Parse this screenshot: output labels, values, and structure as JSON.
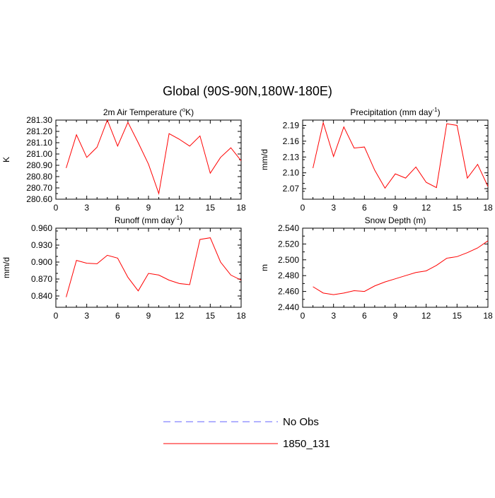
{
  "figure": {
    "title": "Global (90S-90N,180W-180E)",
    "line_color": "#ff0000",
    "obs_color": "#6666ff"
  },
  "legend": {
    "entries": [
      {
        "label": "No Obs",
        "style": "dashed",
        "color": "#6666ff"
      },
      {
        "label": "1850_131",
        "style": "solid",
        "color": "#ff0000"
      }
    ]
  },
  "chart_data": [
    {
      "type": "line",
      "title": "2m Air Temperature (",
      "title_sup": "o",
      "title_post": "K)",
      "xlabel": "",
      "ylabel": "K",
      "xlim": [
        0,
        18
      ],
      "ylim": [
        280.6,
        281.3
      ],
      "xticks": [
        0,
        3,
        6,
        9,
        12,
        15,
        18
      ],
      "xtick_labels": [
        "0",
        "3",
        "6",
        "9",
        "12",
        "15",
        "18"
      ],
      "yticks": [
        280.6,
        280.7,
        280.8,
        280.9,
        281.0,
        281.1,
        281.2,
        281.3
      ],
      "ytick_labels": [
        "280.60",
        "280.70",
        "280.80",
        "280.90",
        "281.00",
        "281.10",
        "281.20",
        "281.30"
      ],
      "series": [
        {
          "name": "1850_131",
          "x": [
            1,
            2,
            3,
            4,
            5,
            6,
            7,
            8,
            9,
            10,
            11,
            12,
            13,
            14,
            15,
            16,
            17,
            18
          ],
          "values": [
            280.876,
            281.17,
            280.97,
            281.06,
            281.3,
            281.07,
            281.28,
            281.1,
            280.91,
            280.65,
            281.18,
            281.13,
            281.07,
            281.16,
            280.83,
            280.97,
            281.055,
            280.94
          ]
        }
      ]
    },
    {
      "type": "line",
      "title": "Precipitation (mm day",
      "title_sup": "-1",
      "title_post": ")",
      "xlabel": "",
      "ylabel": "mm/d",
      "xlim": [
        0,
        18
      ],
      "ylim": [
        2.05,
        2.2
      ],
      "xticks": [
        0,
        3,
        6,
        9,
        12,
        15,
        18
      ],
      "xtick_labels": [
        "0",
        "3",
        "6",
        "9",
        "12",
        "15",
        "18"
      ],
      "yticks": [
        2.07,
        2.1,
        2.13,
        2.16,
        2.19
      ],
      "ytick_labels": [
        "2.07",
        "2.10",
        "2.13",
        "2.16",
        "2.19"
      ],
      "series": [
        {
          "name": "1850_131",
          "x": [
            1,
            2,
            3,
            4,
            5,
            6,
            7,
            8,
            9,
            10,
            11,
            12,
            13,
            14,
            15,
            16,
            17,
            18
          ],
          "values": [
            2.109,
            2.195,
            2.131,
            2.187,
            2.147,
            2.149,
            2.105,
            2.071,
            2.098,
            2.09,
            2.111,
            2.082,
            2.072,
            2.193,
            2.19,
            2.09,
            2.116,
            2.074
          ]
        }
      ]
    },
    {
      "type": "line",
      "title": "Runoff (mm day",
      "title_sup": "-1",
      "title_post": ")",
      "xlabel": "",
      "ylabel": "mm/d",
      "xlim": [
        0,
        18
      ],
      "ylim": [
        0.82,
        0.96
      ],
      "xticks": [
        0,
        3,
        6,
        9,
        12,
        15,
        18
      ],
      "xtick_labels": [
        "0",
        "3",
        "6",
        "9",
        "12",
        "15",
        "18"
      ],
      "yticks": [
        0.84,
        0.87,
        0.9,
        0.93,
        0.96
      ],
      "ytick_labels": [
        "0.840",
        "0.870",
        "0.900",
        "0.930",
        "0.960"
      ],
      "series": [
        {
          "name": "1850_131",
          "x": [
            1,
            2,
            3,
            4,
            5,
            6,
            7,
            8,
            9,
            10,
            11,
            12,
            13,
            14,
            15,
            16,
            17,
            18
          ],
          "values": [
            0.838,
            0.903,
            0.898,
            0.897,
            0.912,
            0.907,
            0.873,
            0.849,
            0.88,
            0.877,
            0.868,
            0.862,
            0.86,
            0.94,
            0.943,
            0.9,
            0.877,
            0.868
          ]
        }
      ]
    },
    {
      "type": "line",
      "title": "Snow Depth (m)",
      "title_sup": "",
      "title_post": "",
      "xlabel": "",
      "ylabel": "m",
      "xlim": [
        0,
        18
      ],
      "ylim": [
        2.44,
        2.54
      ],
      "xticks": [
        0,
        3,
        6,
        9,
        12,
        15,
        18
      ],
      "xtick_labels": [
        "0",
        "3",
        "6",
        "9",
        "12",
        "15",
        "18"
      ],
      "yticks": [
        2.44,
        2.46,
        2.48,
        2.5,
        2.52,
        2.54
      ],
      "ytick_labels": [
        "2.440",
        "2.460",
        "2.480",
        "2.500",
        "2.520",
        "2.540"
      ],
      "series": [
        {
          "name": "1850_131",
          "x": [
            1,
            2,
            3,
            4,
            5,
            6,
            7,
            8,
            9,
            10,
            11,
            12,
            13,
            14,
            15,
            16,
            17,
            18
          ],
          "values": [
            2.466,
            2.458,
            2.456,
            2.458,
            2.461,
            2.46,
            2.467,
            2.472,
            2.476,
            2.48,
            2.484,
            2.486,
            2.493,
            2.502,
            2.504,
            2.509,
            2.515,
            2.524
          ]
        }
      ]
    }
  ]
}
